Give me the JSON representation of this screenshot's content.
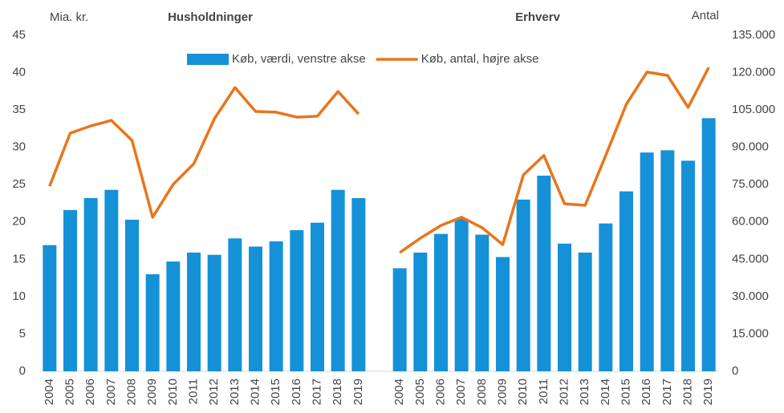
{
  "chart_data": {
    "type": "bar-line",
    "annotations": [
      "Mia. kr.",
      "Husholdninger",
      "Erhverv",
      "Antal"
    ],
    "categories": [
      "2004",
      "2005",
      "2006",
      "2007",
      "2008",
      "2009",
      "2010",
      "2011",
      "2012",
      "2013",
      "2014",
      "2015",
      "2016",
      "2017",
      "2018",
      "2019",
      null,
      "2004",
      "2005",
      "2006",
      "2007",
      "2008",
      "2009",
      "2010",
      "2011",
      "2012",
      "2013",
      "2014",
      "2015",
      "2016",
      "2017",
      "2018",
      "2019"
    ],
    "series": [
      {
        "name": "Køb, værdi, venstre akse",
        "color": "#1591d8",
        "kind": "bar",
        "axis": "y",
        "values": [
          16.9,
          21.6,
          23.2,
          24.3,
          20.3,
          13.0,
          14.7,
          15.9,
          15.6,
          17.8,
          16.7,
          17.4,
          18.9,
          19.9,
          24.3,
          23.2,
          null,
          13.8,
          15.9,
          18.4,
          20.4,
          18.3,
          15.3,
          23.0,
          26.2,
          17.1,
          15.9,
          19.8,
          24.1,
          29.3,
          29.6,
          28.2,
          33.9
        ]
      },
      {
        "name": "Køb, antal, højre akse",
        "color": "#e8761c",
        "kind": "line",
        "axis": "y2",
        "values": [
          74400,
          95700,
          98600,
          100800,
          92800,
          61900,
          75100,
          83400,
          101500,
          114000,
          104400,
          104100,
          102100,
          102500,
          112400,
          103400,
          null,
          47700,
          53500,
          58600,
          61900,
          57700,
          50900,
          78900,
          86700,
          67300,
          66700,
          86700,
          107300,
          120200,
          118900,
          106000,
          122100
        ]
      }
    ],
    "ylim": [
      0,
      45
    ],
    "yticks": [
      0,
      5,
      10,
      15,
      20,
      25,
      30,
      35,
      40,
      45
    ],
    "y2lim": [
      0,
      135000
    ],
    "y2ticks": [
      0,
      {
        "value": 15000,
        "label": "15.000"
      },
      {
        "value": 30000,
        "label": "30.000"
      },
      {
        "value": 45000,
        "label": "45.000"
      },
      {
        "value": 60000,
        "label": "60.000"
      },
      {
        "value": 75000,
        "label": "75.000"
      },
      {
        "value": 90000,
        "label": "90.000"
      },
      {
        "value": 105000,
        "label": "105.000"
      },
      {
        "value": 120000,
        "label": "120.000"
      },
      {
        "value": 135000,
        "label": "135.000"
      }
    ],
    "grid": false,
    "legend": "top"
  }
}
